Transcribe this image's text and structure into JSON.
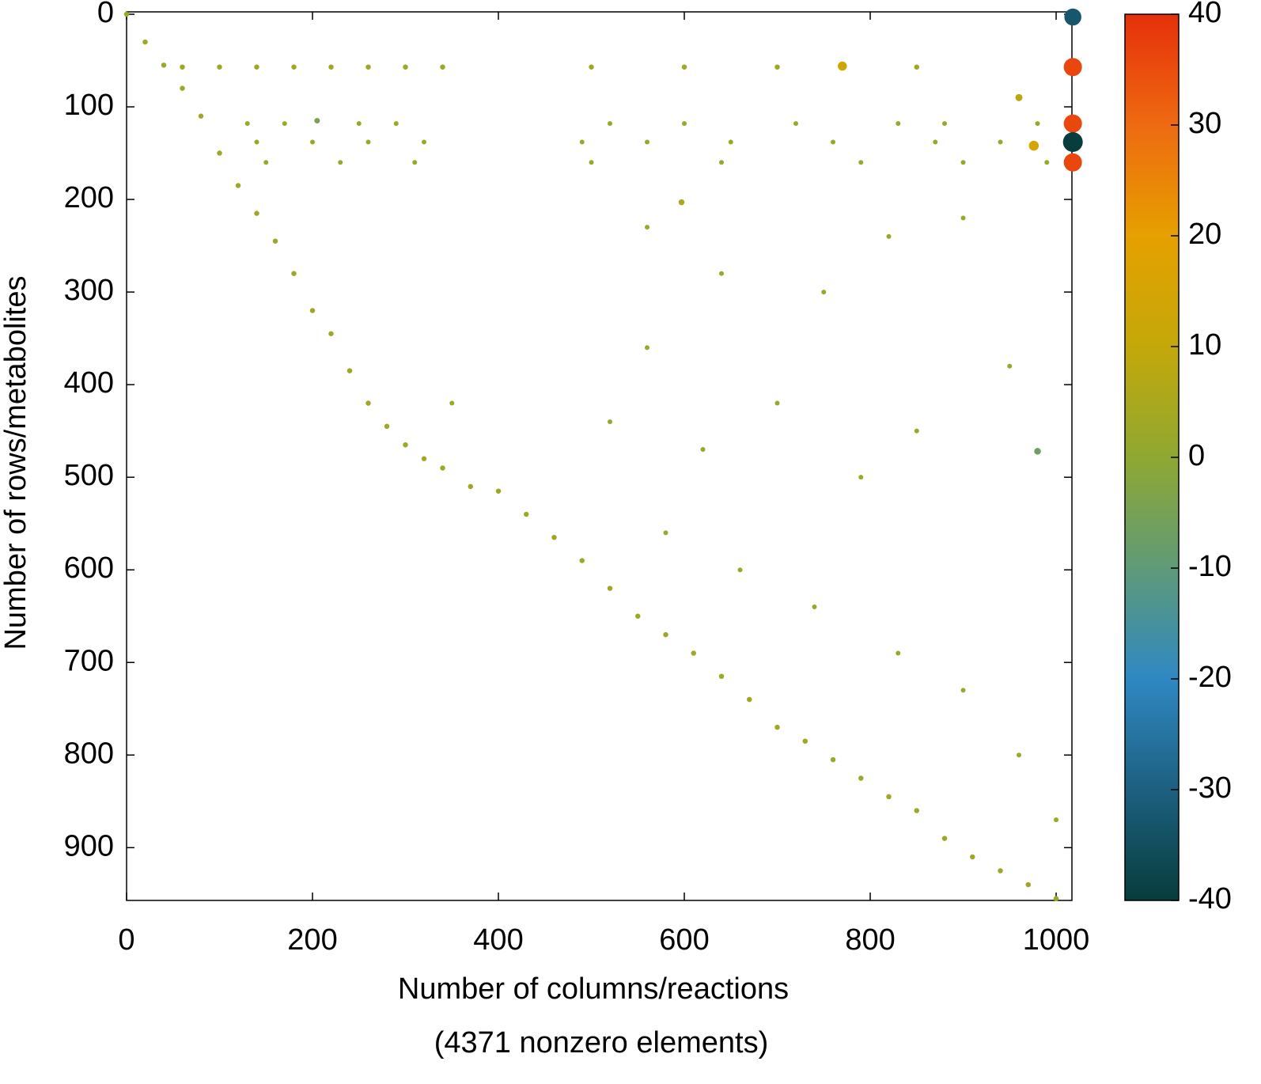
{
  "chart_data": {
    "type": "scatter",
    "xlabel": [
      "Number of columns/reactions",
      "(4371 nonzero elements)"
    ],
    "ylabel": "Number of rows/metabolites",
    "xlim": [
      0,
      1017
    ],
    "ylim": [
      0,
      957
    ],
    "y_reversed": true,
    "xticks": [
      0,
      200,
      400,
      600,
      800,
      1000
    ],
    "yticks": [
      0,
      100,
      200,
      300,
      400,
      500,
      600,
      700,
      800,
      900
    ],
    "clim": [
      -40,
      40
    ],
    "cticks": [
      -40,
      -30,
      -20,
      -10,
      0,
      10,
      20,
      30,
      40
    ],
    "colormap": [
      "#083d3d",
      "#1d6080",
      "#2f88c2",
      "#5f9a78",
      "#8fa832",
      "#c4a80a",
      "#e6a000",
      "#ee6a12",
      "#e6300a"
    ],
    "series": [
      {
        "x": [
          1018,
          1018,
          1018,
          1018,
          1018,
          976,
          770,
          980,
          205,
          597,
          960
        ],
        "y": [
          3,
          57,
          118,
          138,
          160,
          142,
          56,
          472,
          115,
          203,
          90
        ],
        "values": [
          -33,
          36,
          36,
          -40,
          36,
          15,
          13,
          -7,
          -4,
          5,
          8
        ]
      },
      {
        "x": [
          0,
          20,
          40,
          60,
          80,
          100,
          120,
          140,
          160,
          180,
          200,
          220,
          240,
          260,
          280,
          300,
          320,
          340,
          370,
          400,
          430,
          460,
          490,
          520,
          550,
          580,
          610,
          640,
          670,
          700,
          730,
          760,
          790,
          820,
          850,
          880,
          910,
          940,
          970,
          1000
        ],
        "y": [
          0,
          30,
          55,
          80,
          110,
          150,
          185,
          215,
          245,
          280,
          320,
          345,
          385,
          420,
          445,
          465,
          480,
          490,
          510,
          515,
          540,
          565,
          590,
          620,
          650,
          670,
          690,
          715,
          740,
          770,
          785,
          805,
          825,
          845,
          860,
          890,
          910,
          925,
          940,
          955
        ],
        "values": [
          3,
          3,
          3,
          3,
          3,
          3,
          3,
          3,
          3,
          3,
          3,
          3,
          3,
          3,
          3,
          3,
          3,
          3,
          3,
          3,
          3,
          3,
          3,
          3,
          3,
          3,
          3,
          3,
          3,
          3,
          3,
          3,
          3,
          3,
          3,
          3,
          3,
          3,
          3,
          3
        ]
      },
      {
        "x": [
          60,
          100,
          140,
          180,
          220,
          260,
          300,
          340,
          500,
          600,
          700,
          850
        ],
        "y": [
          57,
          57,
          57,
          57,
          57,
          57,
          57,
          57,
          57,
          57,
          57,
          57
        ],
        "values": [
          3,
          3,
          3,
          3,
          3,
          3,
          3,
          3,
          3,
          3,
          3,
          3
        ]
      },
      {
        "x": [
          130,
          170,
          250,
          290,
          520,
          600,
          720,
          830,
          880,
          980
        ],
        "y": [
          118,
          118,
          118,
          118,
          118,
          118,
          118,
          118,
          118,
          118
        ],
        "values": [
          2,
          2,
          2,
          2,
          2,
          2,
          2,
          2,
          2,
          2
        ]
      },
      {
        "x": [
          140,
          200,
          260,
          320,
          490,
          560,
          650,
          760,
          870,
          940
        ],
        "y": [
          138,
          138,
          138,
          138,
          138,
          138,
          138,
          138,
          138,
          138
        ],
        "values": [
          2,
          2,
          2,
          2,
          2,
          2,
          2,
          2,
          2,
          2
        ]
      },
      {
        "x": [
          150,
          230,
          310,
          500,
          640,
          790,
          900,
          990
        ],
        "y": [
          160,
          160,
          160,
          160,
          160,
          160,
          160,
          160
        ],
        "values": [
          2,
          2,
          2,
          2,
          2,
          2,
          2,
          2
        ]
      },
      {
        "x": [
          560,
          640,
          750,
          820,
          900,
          700,
          790,
          850,
          950,
          520,
          580,
          660,
          740,
          830,
          900,
          960,
          1000,
          560,
          620,
          350
        ],
        "y": [
          230,
          280,
          300,
          240,
          220,
          420,
          500,
          450,
          380,
          440,
          560,
          600,
          640,
          690,
          730,
          800,
          870,
          360,
          470,
          420
        ],
        "values": [
          2,
          2,
          2,
          2,
          2,
          2,
          2,
          2,
          2,
          2,
          2,
          2,
          2,
          2,
          2,
          2,
          2,
          2,
          2,
          2
        ]
      }
    ]
  }
}
